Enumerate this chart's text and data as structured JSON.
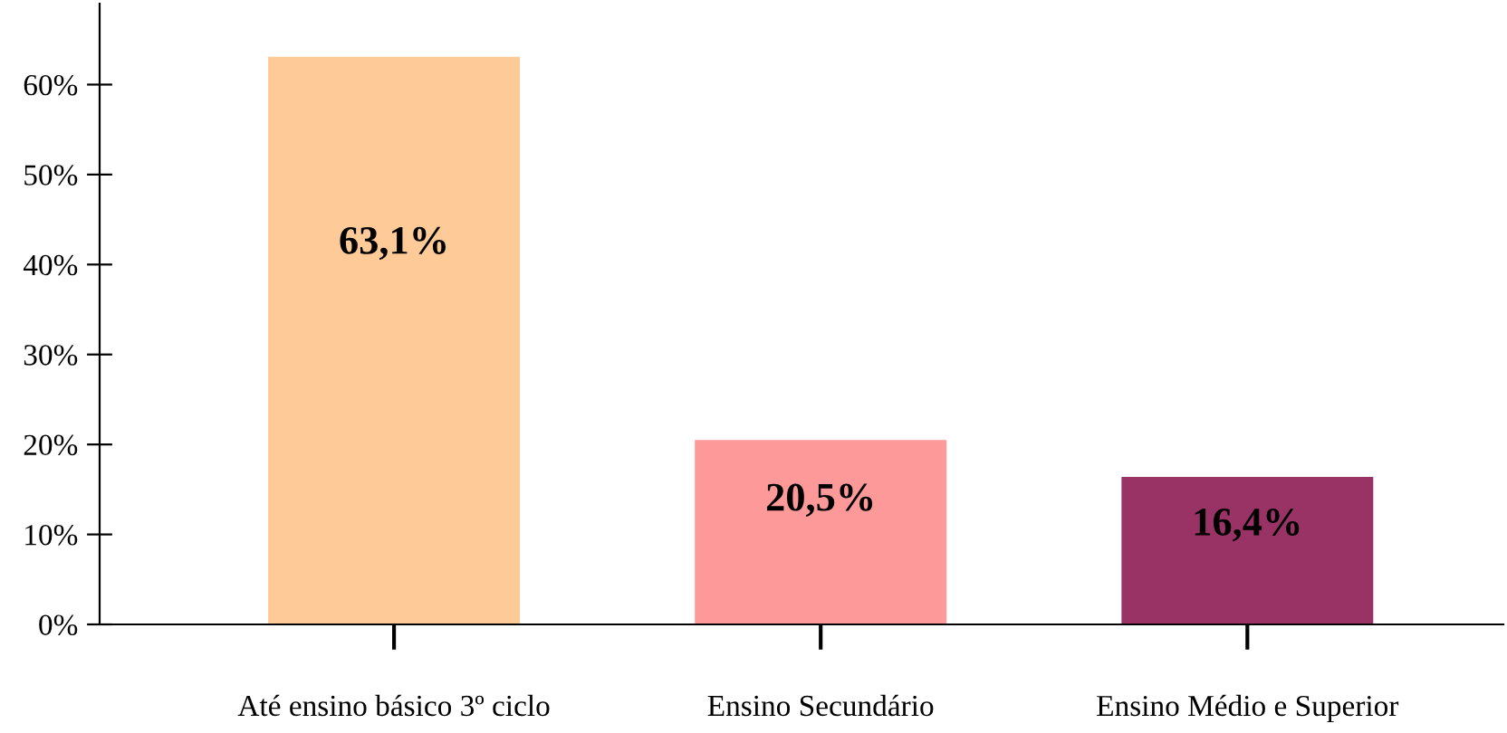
{
  "chart_data": {
    "type": "bar",
    "categories": [
      "Até ensino básico 3º ciclo",
      "Ensino Secundário",
      "Ensino Médio e Superior"
    ],
    "values": [
      63.1,
      20.5,
      16.4
    ],
    "colors": [
      "#fdca98",
      "#fe9999",
      "#993366"
    ],
    "value_labels": [
      "63,1%",
      "20,5%",
      "16,4%"
    ],
    "ylim": [
      0,
      69
    ],
    "yticks": [
      {
        "value": 0,
        "label": "0%"
      },
      {
        "value": 10,
        "label": "10%"
      },
      {
        "value": 20,
        "label": "20%"
      },
      {
        "value": 30,
        "label": "30%"
      },
      {
        "value": 40,
        "label": "40%"
      },
      {
        "value": 50,
        "label": "50%"
      },
      {
        "value": 60,
        "label": "60%"
      }
    ],
    "grid": false,
    "legend": false
  }
}
